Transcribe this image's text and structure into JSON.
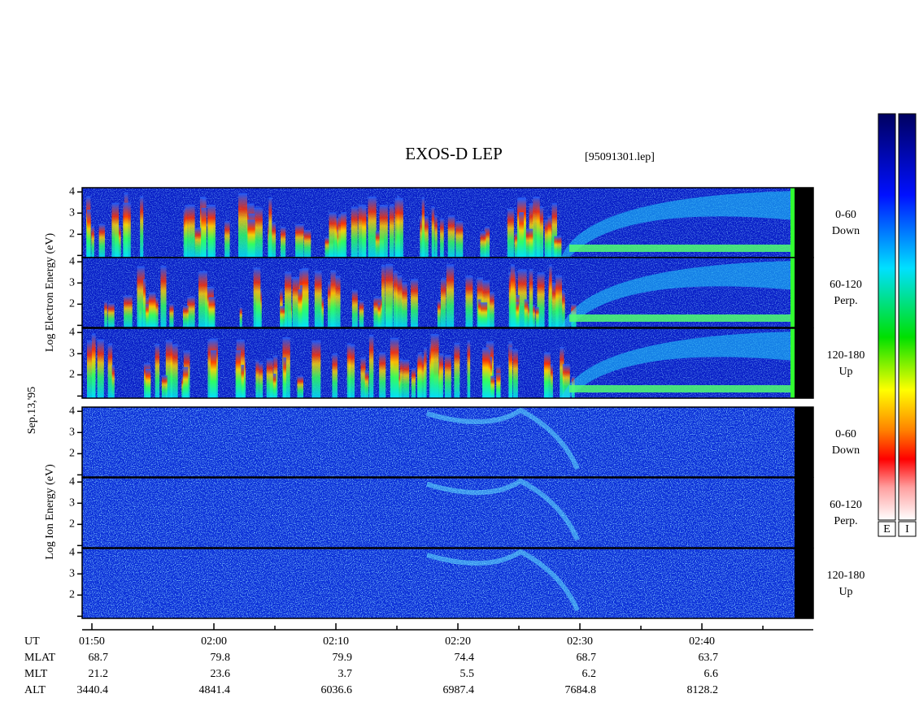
{
  "title": "EXOS-D LEP",
  "file": "[95091301.lep]",
  "date": "Sep.13,'95",
  "electron_label": "Log  Electron  Energy (eV)",
  "ion_label": "Log  Ion  Energy (eV)",
  "panels": [
    {
      "species": "electron",
      "angle": "0-60",
      "direction": "Down"
    },
    {
      "species": "electron",
      "angle": "60-120",
      "direction": "Perp."
    },
    {
      "species": "electron",
      "angle": "120-180",
      "direction": "Up"
    },
    {
      "species": "ion",
      "angle": "0-60",
      "direction": "Down"
    },
    {
      "species": "ion",
      "angle": "60-120",
      "direction": "Perp."
    },
    {
      "species": "ion",
      "angle": "120-180",
      "direction": "Up"
    }
  ],
  "energy_axis": {
    "lim": [
      0.9,
      4.2
    ],
    "ticks": [
      {
        "value": 1,
        "label": null
      },
      2,
      3,
      4
    ]
  },
  "time_axis": {
    "lim": [
      109.2,
      169.13
    ],
    "ticks": [
      {
        "value": 110,
        "label": "01:50"
      },
      {
        "value": 120,
        "label": "02:00"
      },
      {
        "value": 130,
        "label": "02:10"
      },
      {
        "value": 140,
        "label": "02:20"
      },
      {
        "value": 150,
        "label": "02:30"
      },
      {
        "value": 160,
        "label": "02:40"
      }
    ],
    "minor_ticks": [
      115,
      125,
      135,
      145,
      155,
      165
    ]
  },
  "ut_label": "UT",
  "ephemeris": [
    {
      "label": "MLAT",
      "values": [
        68.7,
        79.8,
        79.9,
        74.4,
        68.7,
        63.7
      ]
    },
    {
      "label": "MLT",
      "values": [
        21.2,
        23.6,
        3.7,
        5.5,
        6.2,
        6.6
      ]
    },
    {
      "label": "ALT",
      "values": [
        3440.4,
        4841.4,
        6036.6,
        6987.4,
        7684.8,
        8128.2
      ]
    }
  ],
  "colorbar_labels": [
    "E",
    "I"
  ]
}
